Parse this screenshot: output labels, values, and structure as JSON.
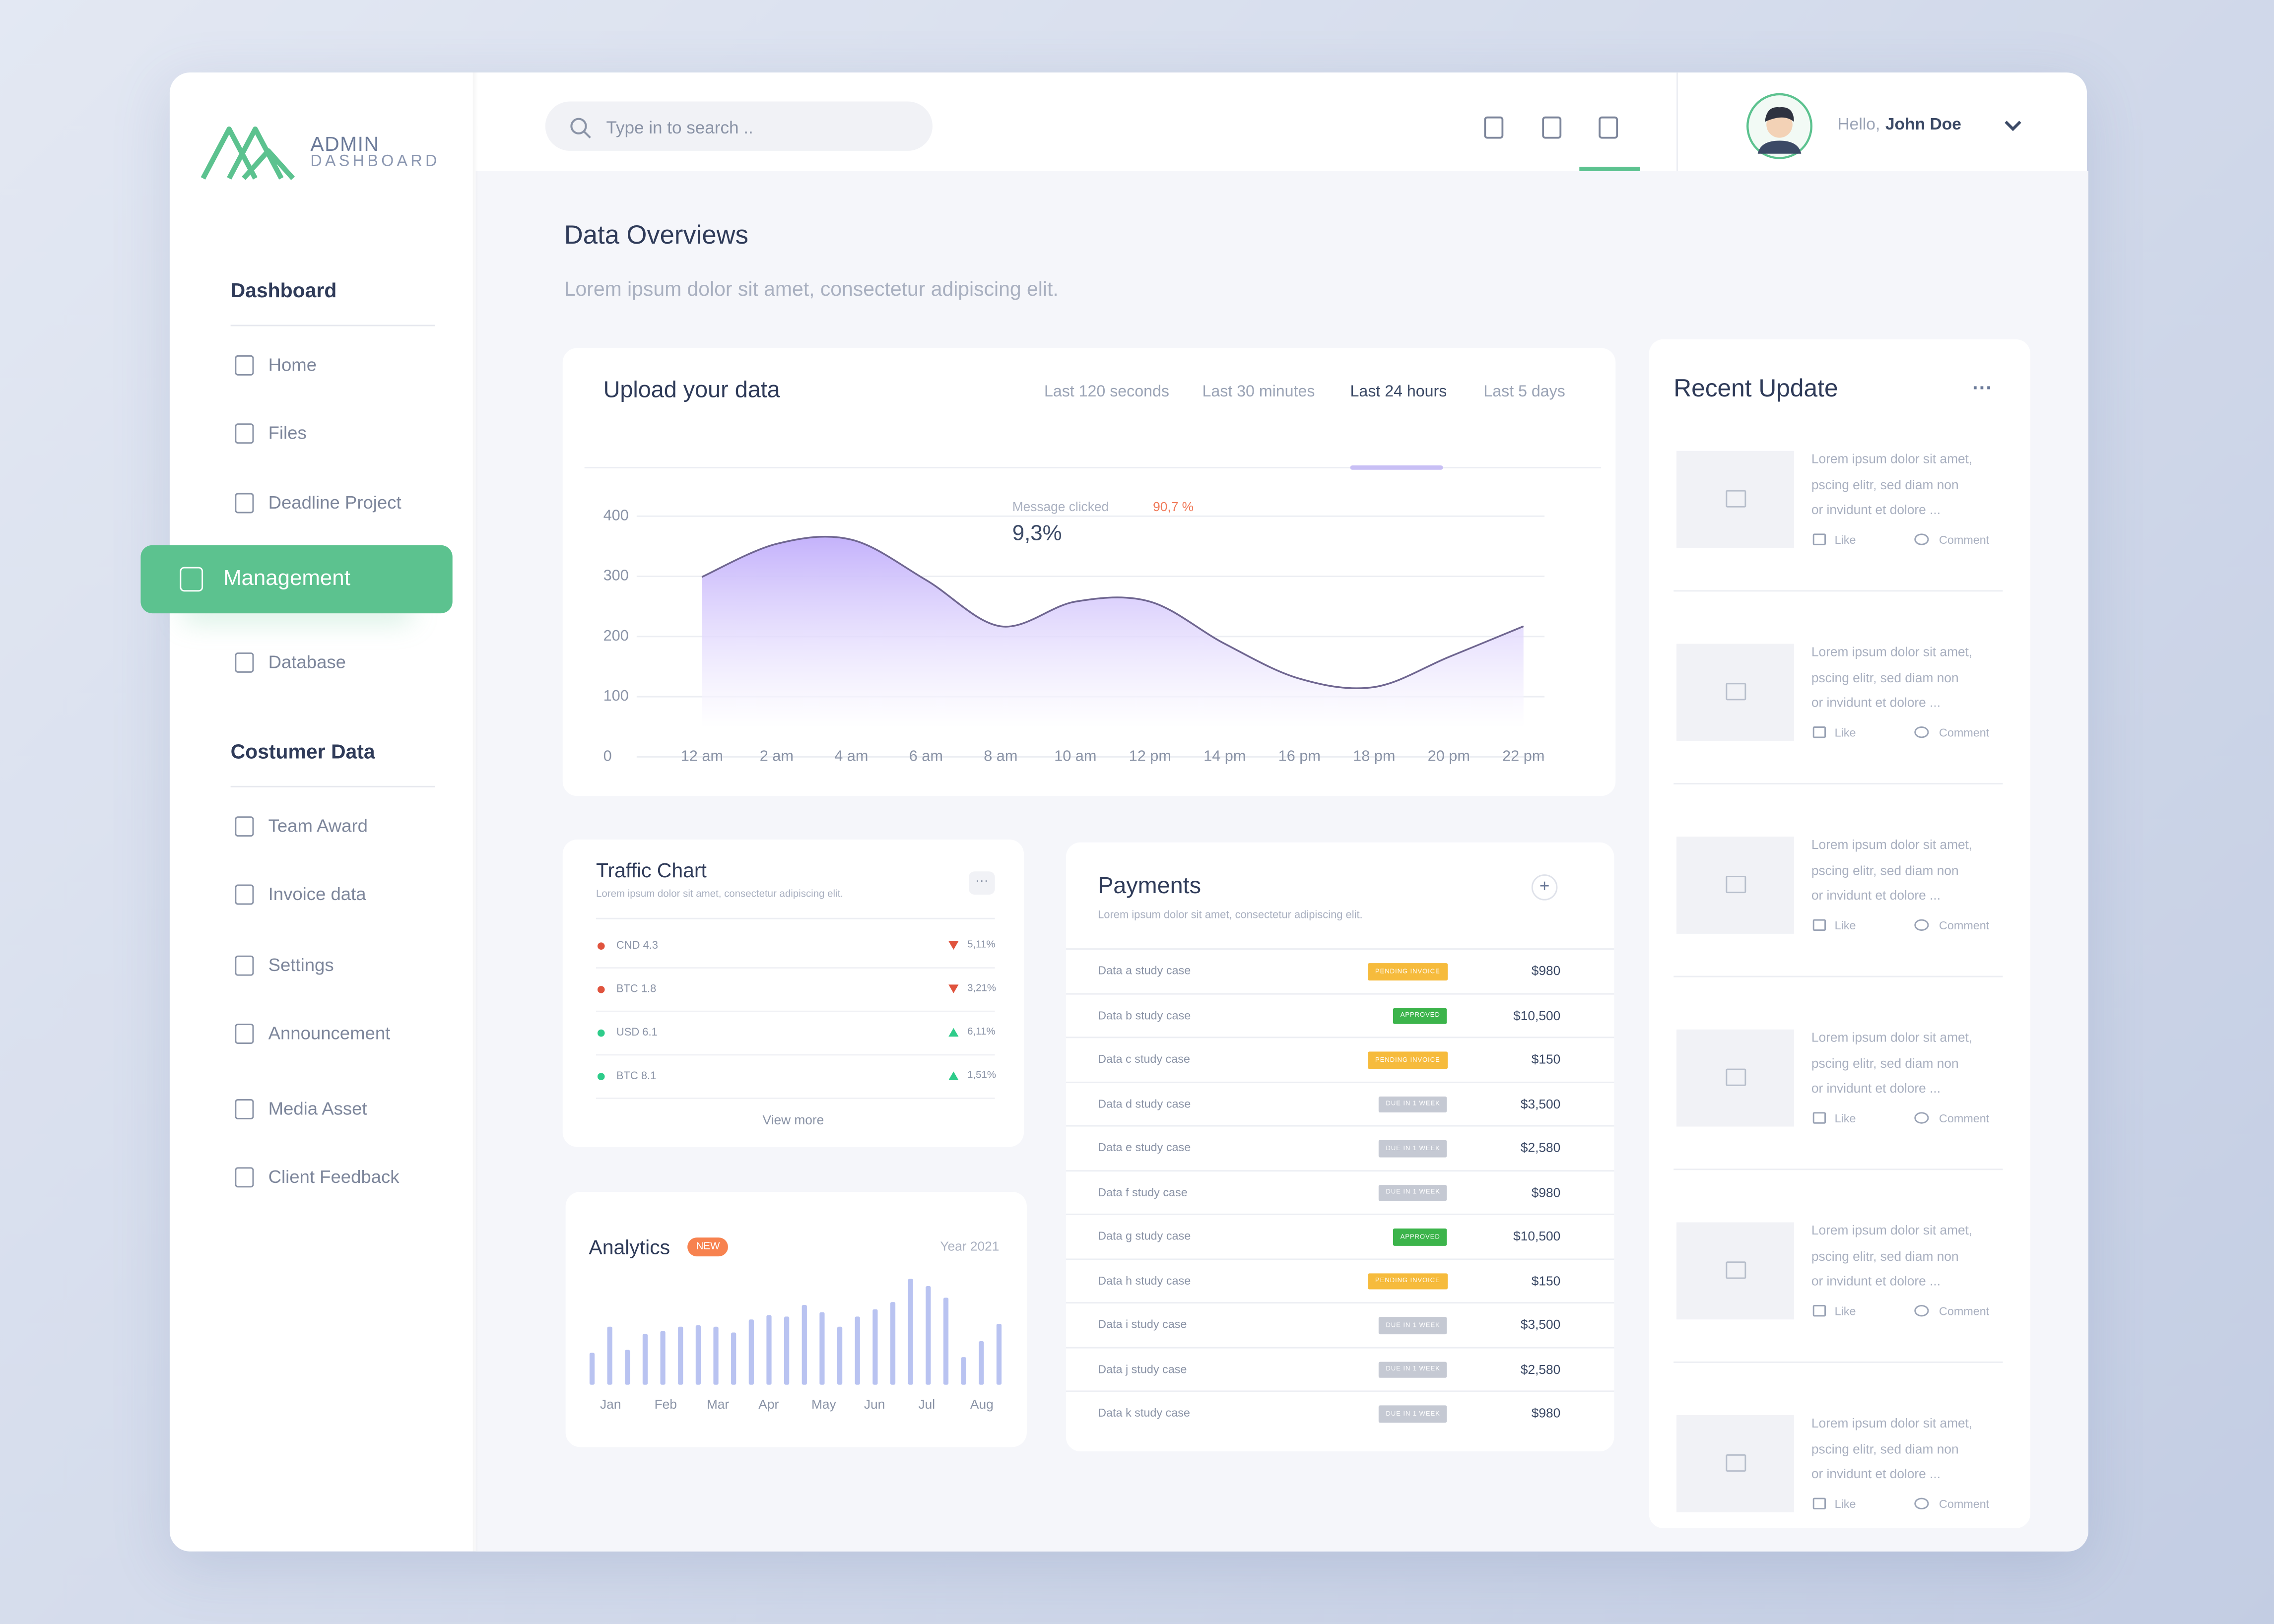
{
  "header": {
    "logo_title": "ADMIN",
    "logo_subtitle": "DASHBOARD",
    "search_placeholder": "Type in to search ..",
    "greeting": "Hello,",
    "user_name": "John Doe"
  },
  "sidebar": {
    "sections": [
      {
        "title": "Dashboard",
        "items": [
          {
            "label": "Home"
          },
          {
            "label": "Files"
          },
          {
            "label": "Deadline Project"
          },
          {
            "label": "Management",
            "active": true
          },
          {
            "label": "Database"
          }
        ]
      },
      {
        "title": "Costumer Data",
        "items": [
          {
            "label": "Team Award"
          },
          {
            "label": "Invoice data"
          },
          {
            "label": "Settings"
          },
          {
            "label": "Announcement"
          },
          {
            "label": "Media Asset"
          },
          {
            "label": "Client Feedback"
          }
        ]
      }
    ]
  },
  "page": {
    "title": "Data Overviews",
    "subtitle": "Lorem ipsum dolor sit amet, consectetur adipiscing elit."
  },
  "upload_chart": {
    "type": "area",
    "title": "Upload your data",
    "ranges": [
      "Last 120 seconds",
      "Last 30 minutes",
      "Last 24 hours",
      "Last 5 days"
    ],
    "selected_range": 2,
    "annotation": {
      "label": "Message clicked",
      "value_label": "9,3%",
      "change": "90,7 %"
    },
    "categories": [
      "12 am",
      "2 am",
      "4 am",
      "6 am",
      "8 am",
      "10 am",
      "12 pm",
      "14 pm",
      "16 pm",
      "18 pm",
      "20 pm",
      "22 pm"
    ],
    "values": [
      299,
      354,
      361,
      294,
      217,
      258,
      258,
      188,
      130,
      116,
      166,
      217
    ],
    "ylim": [
      0,
      400
    ],
    "yticks": [
      0,
      100,
      200,
      300,
      400
    ],
    "grid": true,
    "color": "#6f6690"
  },
  "traffic": {
    "title": "Traffic Chart",
    "subtitle": "Lorem ipsum dolor sit amet, consectetur adipiscing elit.",
    "rows": [
      {
        "name": "CND 4.3",
        "change": "5,11%",
        "trend": "down",
        "color": "#e0533d"
      },
      {
        "name": "BTC 1.8",
        "change": "3,21%",
        "trend": "down",
        "color": "#e0533d"
      },
      {
        "name": "USD 6.1",
        "change": "6,11%",
        "trend": "up",
        "color": "#2ecc8a"
      },
      {
        "name": "BTC 8.1",
        "change": "1,51%",
        "trend": "up",
        "color": "#2ecc8a"
      }
    ],
    "footer": "View more"
  },
  "analytics": {
    "type": "bar",
    "title": "Analytics",
    "badge": "NEW",
    "period": "Year 2021",
    "color": "#b9c3f1",
    "values": [
      22,
      40,
      24,
      35,
      37,
      40,
      41,
      40,
      36,
      45,
      48,
      47,
      55,
      50,
      40,
      47,
      52,
      57,
      73,
      68,
      60,
      19,
      30,
      42
    ],
    "months": [
      "Jan",
      "Feb",
      "Mar",
      "Apr",
      "May",
      "Jun",
      "Jul",
      "Aug"
    ]
  },
  "payments": {
    "title": "Payments",
    "subtitle": "Lorem ipsum dolor sit amet, consectetur adipiscing elit.",
    "rows": [
      {
        "name": "Data a study case",
        "status": "PENDING INVOICE",
        "status_color": "#f6bb3c",
        "amount": "$980"
      },
      {
        "name": "Data b study case",
        "status": "APPROVED",
        "status_color": "#3cb44b",
        "amount": "$10,500"
      },
      {
        "name": "Data c study case",
        "status": "PENDING INVOICE",
        "status_color": "#f6bb3c",
        "amount": "$150"
      },
      {
        "name": "Data d study case",
        "status": "DUE IN 1 WEEK",
        "status_color": "#c5c9d3",
        "amount": "$3,500"
      },
      {
        "name": "Data e study case",
        "status": "DUE IN 1 WEEK",
        "status_color": "#c5c9d3",
        "amount": "$2,580"
      },
      {
        "name": "Data f study case",
        "status": "DUE IN 1 WEEK",
        "status_color": "#c5c9d3",
        "amount": "$980"
      },
      {
        "name": "Data g study case",
        "status": "APPROVED",
        "status_color": "#3cb44b",
        "amount": "$10,500"
      },
      {
        "name": "Data h study case",
        "status": "PENDING INVOICE",
        "status_color": "#f6bb3c",
        "amount": "$150"
      },
      {
        "name": "Data i study case",
        "status": "DUE IN 1 WEEK",
        "status_color": "#c5c9d3",
        "amount": "$3,500"
      },
      {
        "name": "Data j study case",
        "status": "DUE IN 1 WEEK",
        "status_color": "#c5c9d3",
        "amount": "$2,580"
      },
      {
        "name": "Data k study case",
        "status": "DUE IN 1 WEEK",
        "status_color": "#c5c9d3",
        "amount": "$980"
      }
    ]
  },
  "recent": {
    "title": "Recent Update",
    "items": [
      {
        "lines": [
          "Lorem ipsum dolor sit amet,",
          "pscing elitr, sed diam non",
          "or invidunt et dolore ..."
        ],
        "like": "Like",
        "comment": "Comment"
      },
      {
        "lines": [
          "Lorem ipsum dolor sit amet,",
          "pscing elitr, sed diam non",
          "or invidunt et dolore ..."
        ],
        "like": "Like",
        "comment": "Comment"
      },
      {
        "lines": [
          "Lorem ipsum dolor sit amet,",
          "pscing elitr, sed diam non",
          "or invidunt et dolore ..."
        ],
        "like": "Like",
        "comment": "Comment"
      },
      {
        "lines": [
          "Lorem ipsum dolor sit amet,",
          "pscing elitr, sed diam non",
          "or invidunt et dolore ..."
        ],
        "like": "Like",
        "comment": "Comment"
      },
      {
        "lines": [
          "Lorem ipsum dolor sit amet,",
          "pscing elitr, sed diam non",
          "or invidunt et dolore ..."
        ],
        "like": "Like",
        "comment": "Comment"
      },
      {
        "lines": [
          "Lorem ipsum dolor sit amet,",
          "pscing elitr, sed diam non",
          "or invidunt et dolore ..."
        ],
        "like": "Like",
        "comment": "Comment"
      }
    ]
  }
}
